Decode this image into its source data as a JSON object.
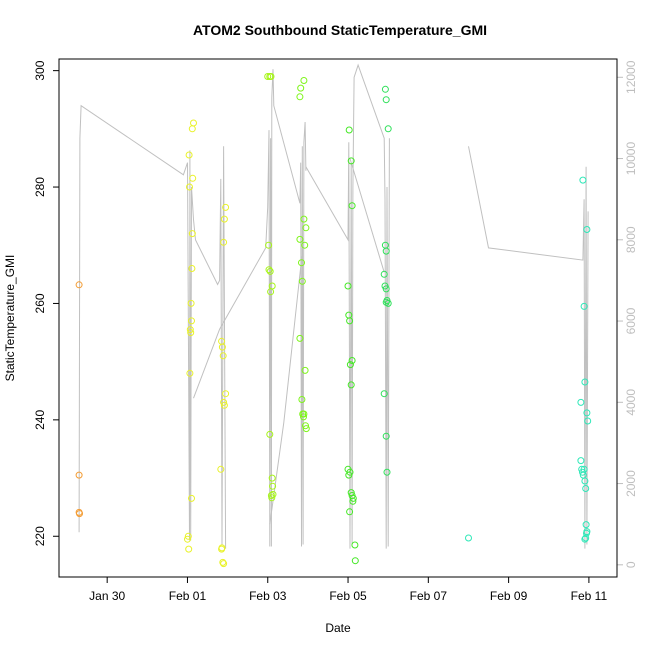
{
  "chart_data": {
    "type": "scatter",
    "title": "ATOM2 Southbound StaticTemperature_GMI",
    "xlabel": "Date",
    "ylabel": "StaticTemperature_GMI",
    "x_unit": "days after Jan 28 00:00",
    "xlim": [
      0.8,
      14.7
    ],
    "ylim": [
      213,
      302
    ],
    "y2lim": [
      -300,
      12450
    ],
    "x_ticks": [
      {
        "value": 2,
        "label": "Jan 30"
      },
      {
        "value": 4,
        "label": "Feb 01"
      },
      {
        "value": 6,
        "label": "Feb 03"
      },
      {
        "value": 8,
        "label": "Feb 05"
      },
      {
        "value": 10,
        "label": "Feb 07"
      },
      {
        "value": 12,
        "label": "Feb 09"
      },
      {
        "value": 14,
        "label": "Feb 11"
      }
    ],
    "y_ticks": [
      220,
      240,
      260,
      280,
      300
    ],
    "y2_ticks": [
      0,
      2000,
      4000,
      6000,
      8000,
      10000,
      12000
    ],
    "grid": false,
    "series": [
      {
        "color": "#f39c34",
        "points": [
          [
            1.3,
            263.2
          ],
          [
            1.3,
            230.5
          ],
          [
            1.3,
            224.1
          ],
          [
            1.31,
            223.9
          ]
        ]
      },
      {
        "color": "#e9f22a",
        "points": [
          [
            4.0,
            219.5
          ],
          [
            4.02,
            220.0
          ],
          [
            4.03,
            217.8
          ],
          [
            4.04,
            285.5
          ],
          [
            4.05,
            280.0
          ],
          [
            4.06,
            248.0
          ],
          [
            4.07,
            255.5
          ],
          [
            4.08,
            255.0
          ],
          [
            4.09,
            260.0
          ],
          [
            4.1,
            257.0
          ],
          [
            4.11,
            266.0
          ],
          [
            4.12,
            272.0
          ],
          [
            4.13,
            281.5
          ],
          [
            4.12,
            290.0
          ],
          [
            4.15,
            291.0
          ],
          [
            4.1,
            226.5
          ],
          [
            4.83,
            231.5
          ],
          [
            4.85,
            217.8
          ],
          [
            4.86,
            218.0
          ],
          [
            4.88,
            215.5
          ],
          [
            4.9,
            215.3
          ],
          [
            4.85,
            253.5
          ],
          [
            4.87,
            252.5
          ],
          [
            4.89,
            251.0
          ],
          [
            4.9,
            243.0
          ],
          [
            4.92,
            242.5
          ],
          [
            4.95,
            244.5
          ],
          [
            4.9,
            270.5
          ],
          [
            4.92,
            274.5
          ],
          [
            4.95,
            276.5
          ]
        ]
      },
      {
        "color": "#a6f518",
        "points": [
          [
            6.0,
            299.0
          ],
          [
            6.05,
            299.0
          ],
          [
            6.08,
            299.0
          ],
          [
            6.02,
            270.0
          ],
          [
            6.03,
            265.8
          ],
          [
            6.06,
            265.5
          ],
          [
            6.07,
            262.0
          ],
          [
            6.05,
            237.5
          ],
          [
            6.09,
            227.0
          ],
          [
            6.1,
            226.6
          ],
          [
            6.12,
            228.6
          ],
          [
            6.11,
            230.0
          ],
          [
            6.13,
            227.2
          ],
          [
            6.11,
            263.0
          ]
        ]
      },
      {
        "color": "#7ef51a",
        "points": [
          [
            6.8,
            295.5
          ],
          [
            6.82,
            297.0
          ],
          [
            6.9,
            298.3
          ],
          [
            6.8,
            271.0
          ],
          [
            6.84,
            267.0
          ],
          [
            6.86,
            263.8
          ],
          [
            6.9,
            274.5
          ],
          [
            6.92,
            270.0
          ],
          [
            6.95,
            273.0
          ],
          [
            6.8,
            254.0
          ],
          [
            6.85,
            243.5
          ],
          [
            6.87,
            241.0
          ],
          [
            6.89,
            240.5
          ],
          [
            6.9,
            241.0
          ],
          [
            6.93,
            248.5
          ],
          [
            6.94,
            239.0
          ],
          [
            6.96,
            238.5
          ]
        ]
      },
      {
        "color": "#45e826",
        "points": [
          [
            8.03,
            289.8
          ],
          [
            8.08,
            284.5
          ],
          [
            8.1,
            276.8
          ],
          [
            8.0,
            263.0
          ],
          [
            8.02,
            258.0
          ],
          [
            8.04,
            257.0
          ],
          [
            8.06,
            249.5
          ],
          [
            8.1,
            250.2
          ],
          [
            8.08,
            246.0
          ],
          [
            8.0,
            231.5
          ],
          [
            8.02,
            230.5
          ],
          [
            8.05,
            231.0
          ],
          [
            8.08,
            227.5
          ],
          [
            8.1,
            227.0
          ],
          [
            8.12,
            226.0
          ],
          [
            8.13,
            226.5
          ],
          [
            8.04,
            224.2
          ],
          [
            8.17,
            218.5
          ],
          [
            8.18,
            215.8
          ]
        ]
      },
      {
        "color": "#2fe05a",
        "points": [
          [
            8.93,
            296.8
          ],
          [
            8.95,
            295.0
          ],
          [
            9.0,
            290.0
          ],
          [
            8.9,
            265.0
          ],
          [
            8.92,
            263.0
          ],
          [
            8.95,
            262.5
          ],
          [
            8.97,
            260.5
          ],
          [
            9.0,
            260.0
          ],
          [
            8.93,
            270.0
          ],
          [
            8.95,
            269.0
          ],
          [
            8.9,
            244.5
          ],
          [
            8.95,
            237.2
          ],
          [
            8.97,
            231.0
          ],
          [
            8.95,
            260.2
          ]
        ]
      },
      {
        "color": "#2ee8b8",
        "points": [
          [
            11.0,
            219.7
          ],
          [
            13.85,
            281.2
          ],
          [
            13.95,
            272.7
          ],
          [
            13.88,
            259.5
          ],
          [
            13.9,
            246.5
          ],
          [
            13.8,
            243.0
          ],
          [
            13.95,
            241.2
          ],
          [
            13.97,
            239.8
          ],
          [
            13.8,
            233.0
          ],
          [
            13.82,
            231.5
          ],
          [
            13.84,
            231.0
          ],
          [
            13.86,
            230.5
          ],
          [
            13.88,
            231.5
          ],
          [
            13.9,
            229.5
          ],
          [
            13.92,
            228.2
          ],
          [
            13.93,
            222.0
          ],
          [
            13.95,
            220.8
          ],
          [
            13.9,
            219.5
          ],
          [
            13.92,
            219.7
          ],
          [
            13.94,
            220.5
          ]
        ]
      }
    ],
    "secondary_line": {
      "color": "#c0c0c0",
      "segments": [
        [
          [
            1.3,
            800
          ],
          [
            1.32,
            10500
          ],
          [
            1.35,
            11300
          ],
          [
            3.9,
            9600
          ],
          [
            4.0,
            9900
          ],
          [
            4.05,
            600
          ],
          [
            4.06,
            10200
          ],
          [
            4.08,
            600
          ],
          [
            4.1,
            9300
          ],
          [
            4.15,
            8500
          ],
          [
            4.2,
            8000
          ],
          [
            4.75,
            6900
          ],
          [
            4.8,
            7000
          ],
          [
            4.83,
            9500
          ],
          [
            4.86,
            500
          ],
          [
            4.9,
            10300
          ],
          [
            4.95,
            400
          ]
        ],
        [
          [
            4.15,
            4100
          ],
          [
            4.8,
            5800
          ],
          [
            5.95,
            7800
          ],
          [
            6.0,
            8800
          ],
          [
            6.03,
            10700
          ],
          [
            6.05,
            450
          ],
          [
            6.07,
            10500
          ],
          [
            6.09,
            450
          ],
          [
            6.1,
            11500
          ],
          [
            6.13,
            12200
          ],
          [
            6.15,
            11300
          ],
          [
            6.8,
            8900
          ],
          [
            6.82,
            9900
          ],
          [
            6.84,
            450
          ],
          [
            6.86,
            10300
          ],
          [
            6.88,
            500
          ],
          [
            6.9,
            10400
          ],
          [
            6.93,
            10900
          ],
          [
            6.95,
            9700
          ]
        ],
        [
          [
            6.05,
            1000
          ],
          [
            6.4,
            3500
          ],
          [
            6.85,
            7600
          ]
        ],
        [
          [
            6.95,
            9800
          ],
          [
            8.0,
            8000
          ],
          [
            8.02,
            10400
          ],
          [
            8.05,
            400
          ],
          [
            8.08,
            9900
          ],
          [
            8.1,
            500
          ],
          [
            8.12,
            9300
          ],
          [
            8.15,
            12000
          ],
          [
            8.25,
            12300
          ],
          [
            8.9,
            10500
          ],
          [
            8.92,
            9000
          ],
          [
            8.95,
            400
          ],
          [
            8.97,
            9300
          ],
          [
            9.0,
            450
          ],
          [
            9.03,
            10500
          ]
        ],
        [
          [
            8.05,
            10000
          ],
          [
            8.9,
            7200
          ]
        ],
        [
          [
            11.0,
            10300
          ],
          [
            11.5,
            7800
          ],
          [
            13.85,
            7500
          ],
          [
            13.88,
            9000
          ],
          [
            13.9,
            400
          ],
          [
            13.93,
            9800
          ],
          [
            13.95,
            500
          ],
          [
            13.98,
            8700
          ]
        ]
      ]
    }
  }
}
